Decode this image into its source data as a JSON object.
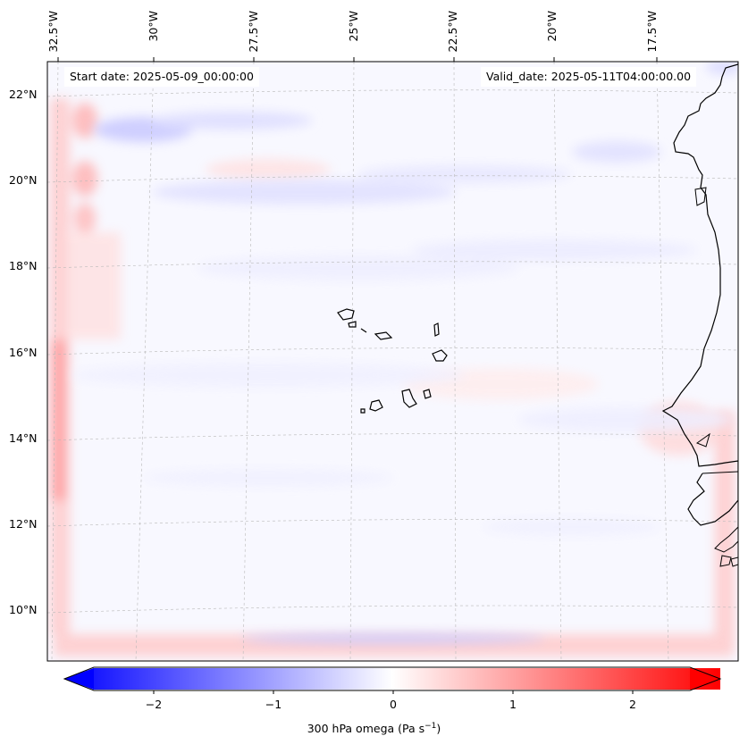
{
  "map": {
    "start_date": "Start date: 2025-05-09_00:00:00",
    "valid_date": "Valid_date: 2025-05-11T04:00:00.00",
    "lon_labels": [
      "32.5°W",
      "30°W",
      "27.5°W",
      "25°W",
      "22.5°W",
      "20°W",
      "17.5°W"
    ],
    "lat_labels": [
      "22°N",
      "20°N",
      "18°N",
      "16°N",
      "14°N",
      "12°N",
      "10°N"
    ],
    "field": "300 hPa omega",
    "region": "Cabo Verde and West African coast"
  },
  "colorbar": {
    "ticks": [
      "−2",
      "−1",
      "0",
      "1",
      "2"
    ],
    "label": "300 hPa omega (Pa s",
    "label_sup": "−1",
    "label_end": ")",
    "range": [
      -2.6,
      2.6
    ],
    "colors": {
      "negative": "#0000ff",
      "zero": "#ffffff",
      "positive": "#ff0000"
    }
  }
}
